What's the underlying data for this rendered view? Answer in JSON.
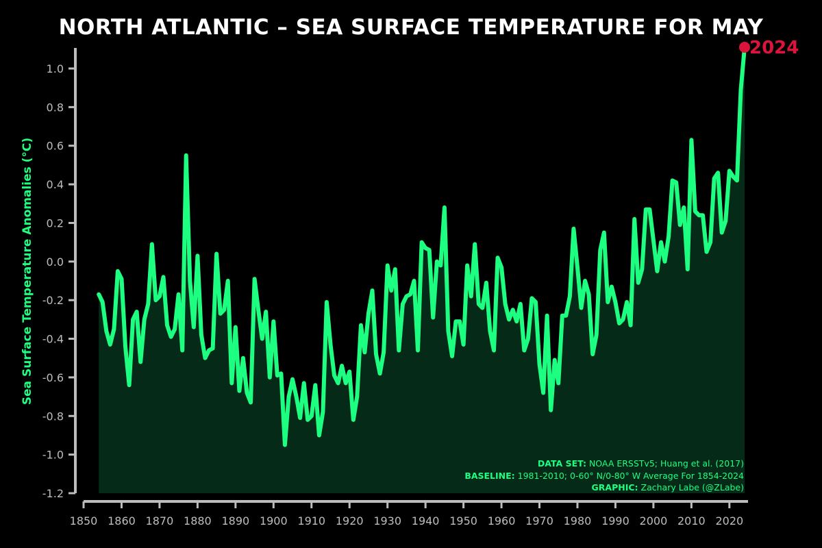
{
  "chart_data": {
    "type": "area",
    "title": "NORTH ATLANTIC – SEA SURFACE TEMPERATURE FOR MAY",
    "xlabel": "",
    "ylabel": "Sea Surface Temperature Anomalies (°C)",
    "xlim": [
      1850,
      2024
    ],
    "ylim": [
      -1.2,
      1.0
    ],
    "x_ticks": [
      "1850",
      "1860",
      "1870",
      "1880",
      "1890",
      "1900",
      "1910",
      "1920",
      "1930",
      "1940",
      "1950",
      "1960",
      "1970",
      "1980",
      "1990",
      "2000",
      "2010",
      "2020"
    ],
    "y_ticks": [
      "-1.2",
      "-1.0",
      "-0.8",
      "-0.6",
      "-0.4",
      "-0.2",
      "0.0",
      "0.2",
      "0.4",
      "0.6",
      "0.8",
      "1.0"
    ],
    "grid": false,
    "line_color": "#1cff80",
    "fill_color": "#062a18",
    "highlight_color": "#dc143c",
    "highlight_label": "2024",
    "series": [
      {
        "x_start": 1854,
        "values": [
          -0.17,
          -0.21,
          -0.36,
          -0.43,
          -0.35,
          -0.05,
          -0.09,
          -0.44,
          -0.64,
          -0.3,
          -0.26,
          -0.52,
          -0.3,
          -0.22,
          0.09,
          -0.2,
          -0.18,
          -0.08,
          -0.33,
          -0.39,
          -0.35,
          -0.17,
          -0.46,
          0.55,
          -0.1,
          -0.34,
          0.03,
          -0.38,
          -0.5,
          -0.46,
          -0.45,
          0.04,
          -0.27,
          -0.25,
          -0.1,
          -0.63,
          -0.34,
          -0.67,
          -0.5,
          -0.68,
          -0.73,
          -0.09,
          -0.25,
          -0.4,
          -0.26,
          -0.6,
          -0.31,
          -0.59,
          -0.58,
          -0.95,
          -0.7,
          -0.61,
          -0.7,
          -0.81,
          -0.63,
          -0.82,
          -0.8,
          -0.64,
          -0.9,
          -0.78,
          -0.21,
          -0.43,
          -0.59,
          -0.63,
          -0.54,
          -0.63,
          -0.57,
          -0.82,
          -0.7,
          -0.33,
          -0.47,
          -0.27,
          -0.15,
          -0.48,
          -0.58,
          -0.47,
          -0.02,
          -0.15,
          -0.04,
          -0.46,
          -0.22,
          -0.18,
          -0.17,
          -0.1,
          -0.46,
          0.1,
          0.07,
          0.06,
          -0.29,
          0.0,
          -0.02,
          0.28,
          -0.36,
          -0.49,
          -0.31,
          -0.31,
          -0.43,
          -0.02,
          -0.18,
          0.09,
          -0.22,
          -0.24,
          -0.11,
          -0.36,
          -0.46,
          0.02,
          -0.03,
          -0.22,
          -0.3,
          -0.25,
          -0.31,
          -0.22,
          -0.46,
          -0.4,
          -0.19,
          -0.21,
          -0.53,
          -0.68,
          -0.28,
          -0.77,
          -0.51,
          -0.63,
          -0.28,
          -0.28,
          -0.18,
          0.17,
          -0.03,
          -0.24,
          -0.1,
          -0.17,
          -0.48,
          -0.38,
          0.06,
          0.15,
          -0.21,
          -0.13,
          -0.21,
          -0.32,
          -0.3,
          -0.21,
          -0.33,
          0.22,
          -0.11,
          -0.04,
          0.27,
          0.27,
          0.11,
          -0.05,
          0.1,
          0.0,
          0.13,
          0.42,
          0.41,
          0.19,
          0.28,
          -0.04,
          0.63,
          0.26,
          0.24,
          0.24,
          0.05,
          0.1,
          0.43,
          0.46,
          0.15,
          0.21,
          0.47,
          0.44,
          0.42,
          0.89,
          1.11
        ]
      }
    ]
  },
  "credits": {
    "dataset_label": "DATA SET:",
    "dataset_value": "NOAA ERSSTv5; Huang et al. (2017)",
    "baseline_label": "BASELINE:",
    "baseline_value": "1981-2010; 0-60° N/0-80° W Average For 1854-2024",
    "graphic_label": "GRAPHIC:",
    "graphic_value": "Zachary Labe (@ZLabe)"
  }
}
